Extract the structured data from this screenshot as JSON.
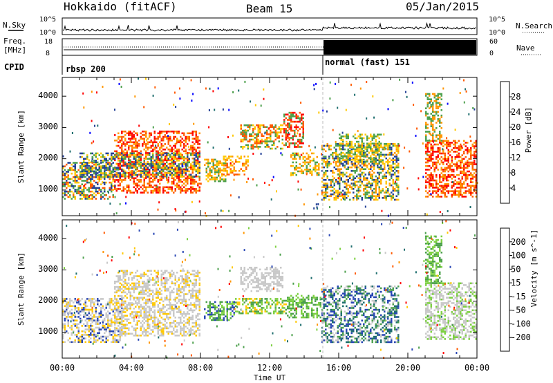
{
  "header": {
    "station": "Hokkaido (fitACF)",
    "beam": "Beam 15",
    "date": "05/Jan/2015"
  },
  "nsky_panel": {
    "left_label": "N.Sky",
    "right_label": "N.Search",
    "left_ticks": [
      "10^5",
      "10^0"
    ],
    "right_ticks": [
      "10^5",
      "10^0"
    ]
  },
  "freq_panel": {
    "left_label_line1": "Freq.",
    "left_label_line2": "[MHz]",
    "left_ticks": [
      "18",
      "8"
    ],
    "right_label": "Nave",
    "right_ticks": [
      "60",
      "0"
    ]
  },
  "cpid": {
    "label": "CPID",
    "segments": [
      {
        "text": "rbsp 200",
        "start_hour": 0
      },
      {
        "text": "normal (fast) 151",
        "start_hour": 15
      }
    ]
  },
  "chart_data": [
    {
      "type": "heatmap",
      "name": "power",
      "ylabel": "Slant Range [km]",
      "y_ticks": [
        "4000",
        "3000",
        "2000",
        "1000"
      ],
      "ylim": [
        180,
        4600
      ],
      "xlim": [
        0,
        24
      ],
      "colorbar": {
        "label": "Power [dB]",
        "tick_labels": [
          "28",
          "24",
          "20",
          "16",
          "12",
          "8",
          "4"
        ],
        "colors": [
          "#ff0000",
          "#ff5a00",
          "#ff9600",
          "#ffc800",
          "#4ca04c",
          "#1e6e6e",
          "#234096",
          "#0000ff"
        ]
      },
      "echo_regions": [
        {
          "h0": 0.0,
          "h1": 3.0,
          "r0": 700,
          "r1": 1900,
          "colors": [
            "#ffc800",
            "#4ca04c",
            "#234096",
            "#ff5a00"
          ]
        },
        {
          "h0": 3.0,
          "h1": 8.0,
          "r0": 900,
          "r1": 2900,
          "colors": [
            "#ff0000",
            "#ff5a00",
            "#ff9600"
          ]
        },
        {
          "h0": 1.0,
          "h1": 8.0,
          "r0": 1400,
          "r1": 2200,
          "colors": [
            "#ffc800",
            "#4ca04c",
            "#234096"
          ]
        },
        {
          "h0": 8.2,
          "h1": 9.5,
          "r0": 1300,
          "r1": 2000,
          "colors": [
            "#ff9600",
            "#ffc800",
            "#4ca04c"
          ]
        },
        {
          "h0": 9.3,
          "h1": 10.8,
          "r0": 1500,
          "r1": 2100,
          "colors": [
            "#ff5a00",
            "#ff9600",
            "#ffc800"
          ]
        },
        {
          "h0": 10.3,
          "h1": 12.8,
          "r0": 2300,
          "r1": 3100,
          "colors": [
            "#ff5a00",
            "#ffc800",
            "#4ca04c"
          ]
        },
        {
          "h0": 12.8,
          "h1": 14.0,
          "r0": 2400,
          "r1": 3500,
          "colors": [
            "#ff0000",
            "#ff5a00",
            "#4ca04c"
          ]
        },
        {
          "h0": 13.2,
          "h1": 14.8,
          "r0": 1500,
          "r1": 2200,
          "colors": [
            "#ff9600",
            "#ffc800",
            "#4ca04c"
          ]
        },
        {
          "h0": 15.0,
          "h1": 19.5,
          "r0": 700,
          "r1": 2500,
          "colors": [
            "#ffc800",
            "#4ca04c",
            "#ff9600",
            "#234096"
          ]
        },
        {
          "h0": 16.0,
          "h1": 18.5,
          "r0": 1900,
          "r1": 2800,
          "colors": [
            "#ffc800",
            "#4ca04c"
          ]
        },
        {
          "h0": 21.0,
          "h1": 24.0,
          "r0": 800,
          "r1": 2600,
          "colors": [
            "#ff0000",
            "#ff5a00",
            "#ff9600"
          ]
        },
        {
          "h0": 21.0,
          "h1": 22.0,
          "r0": 2600,
          "r1": 4100,
          "colors": [
            "#ff9600",
            "#4ca04c"
          ]
        }
      ]
    },
    {
      "type": "heatmap",
      "name": "velocity",
      "ylabel": "Slant Range [km]",
      "y_ticks": [
        "4000",
        "3000",
        "2000",
        "1000"
      ],
      "ylim": [
        180,
        4600
      ],
      "xlim": [
        0,
        24
      ],
      "colorbar": {
        "label": "Velocity [m s^-1]",
        "tick_labels": [
          "200",
          "100",
          "50",
          "15",
          "-15",
          "-50",
          "-100",
          "-200"
        ],
        "colors": [
          "#2846b4",
          "#1e6e6e",
          "#4ca04c",
          "#7cd040",
          "#c8c8c8",
          "#ffc800",
          "#ff9600",
          "#ff5a00",
          "#ff0000"
        ]
      },
      "echo_regions": [
        {
          "h0": 0.0,
          "h1": 3.5,
          "r0": 700,
          "r1": 2100,
          "colors": [
            "#c8c8c8",
            "#c8c8c8",
            "#ffc800",
            "#2846b4"
          ]
        },
        {
          "h0": 3.0,
          "h1": 8.0,
          "r0": 900,
          "r1": 3000,
          "colors": [
            "#c8c8c8",
            "#c8c8c8",
            "#c8c8c8",
            "#ffc800"
          ]
        },
        {
          "h0": 8.2,
          "h1": 10.0,
          "r0": 1400,
          "r1": 2000,
          "colors": [
            "#4ca04c",
            "#7cd040",
            "#2846b4"
          ]
        },
        {
          "h0": 10.0,
          "h1": 13.0,
          "r0": 1600,
          "r1": 2100,
          "colors": [
            "#7cd040",
            "#4ca04c",
            "#ffc800"
          ]
        },
        {
          "h0": 10.3,
          "h1": 12.8,
          "r0": 2300,
          "r1": 3100,
          "colors": [
            "#c8c8c8"
          ]
        },
        {
          "h0": 13.0,
          "h1": 15.0,
          "r0": 1500,
          "r1": 2200,
          "colors": [
            "#7cd040",
            "#4ca04c"
          ]
        },
        {
          "h0": 15.0,
          "h1": 19.5,
          "r0": 700,
          "r1": 2500,
          "colors": [
            "#2846b4",
            "#1e6e6e",
            "#4ca04c",
            "#c8c8c8"
          ]
        },
        {
          "h0": 21.0,
          "h1": 24.0,
          "r0": 800,
          "r1": 2600,
          "colors": [
            "#c8c8c8",
            "#c8c8c8",
            "#7cd040"
          ]
        },
        {
          "h0": 21.0,
          "h1": 22.0,
          "r0": 2600,
          "r1": 4100,
          "colors": [
            "#7cd040",
            "#4ca04c"
          ]
        }
      ]
    }
  ],
  "x_axis": {
    "ticks": [
      "00:00",
      "04:00",
      "08:00",
      "12:00",
      "16:00",
      "20:00",
      "00:00"
    ],
    "label": "Time UT"
  }
}
